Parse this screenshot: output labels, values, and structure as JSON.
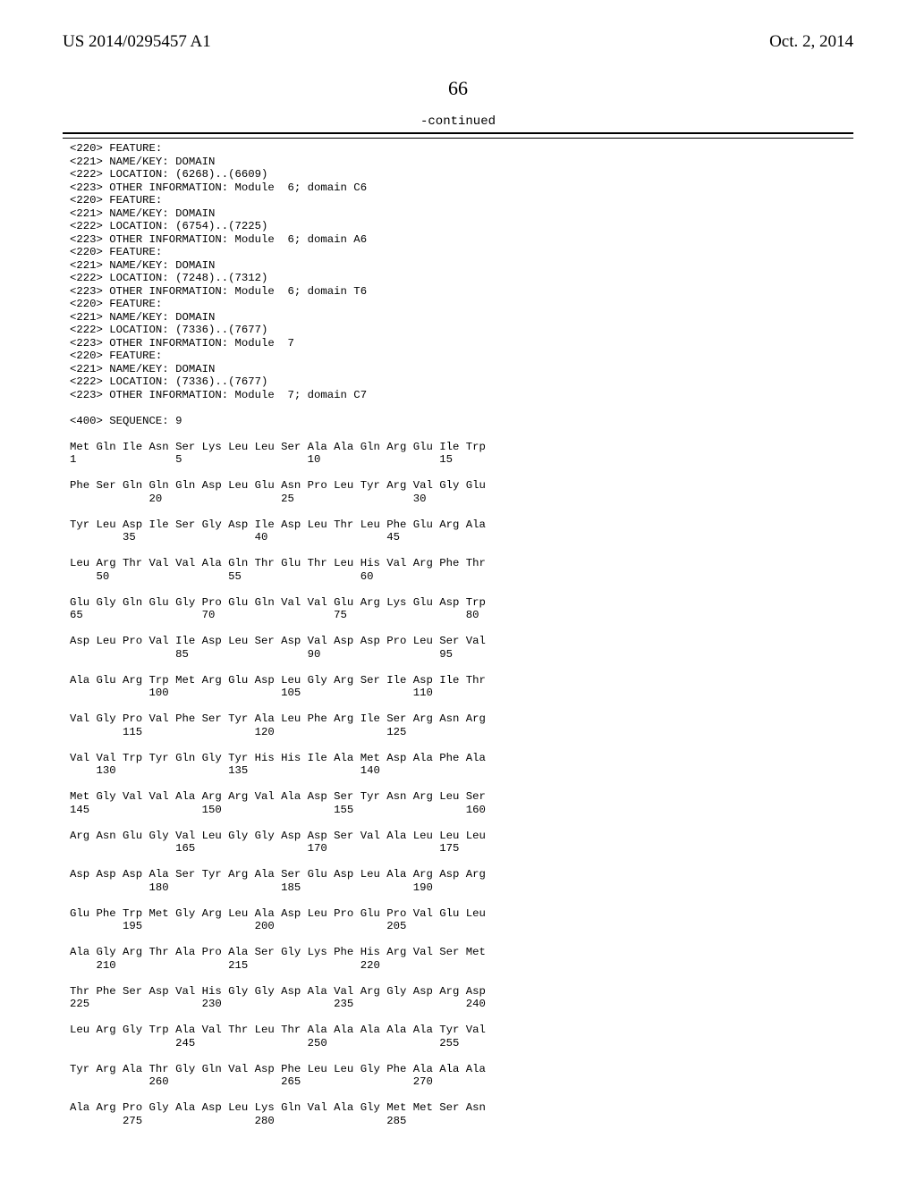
{
  "header": {
    "left": "US 2014/0295457 A1",
    "right": "Oct. 2, 2014"
  },
  "page_number": "66",
  "continued_label": "-continued",
  "features": [
    "<220> FEATURE:",
    "<221> NAME/KEY: DOMAIN",
    "<222> LOCATION: (6268)..(6609)",
    "<223> OTHER INFORMATION: Module  6; domain C6",
    "<220> FEATURE:",
    "<221> NAME/KEY: DOMAIN",
    "<222> LOCATION: (6754)..(7225)",
    "<223> OTHER INFORMATION: Module  6; domain A6",
    "<220> FEATURE:",
    "<221> NAME/KEY: DOMAIN",
    "<222> LOCATION: (7248)..(7312)",
    "<223> OTHER INFORMATION: Module  6; domain T6",
    "<220> FEATURE:",
    "<221> NAME/KEY: DOMAIN",
    "<222> LOCATION: (7336)..(7677)",
    "<223> OTHER INFORMATION: Module  7",
    "<220> FEATURE:",
    "<221> NAME/KEY: DOMAIN",
    "<222> LOCATION: (7336)..(7677)",
    "<223> OTHER INFORMATION: Module  7; domain C7",
    "",
    "<400> SEQUENCE: 9",
    ""
  ],
  "sequence_rows": [
    {
      "aa": "Met Gln Ile Asn Ser Lys Leu Leu Ser Ala Ala Gln Arg Glu Ile Trp",
      "nums": "1               5                   10                  15"
    },
    {
      "aa": "Phe Ser Gln Gln Gln Asp Leu Glu Asn Pro Leu Tyr Arg Val Gly Glu",
      "nums": "            20                  25                  30"
    },
    {
      "aa": "Tyr Leu Asp Ile Ser Gly Asp Ile Asp Leu Thr Leu Phe Glu Arg Ala",
      "nums": "        35                  40                  45"
    },
    {
      "aa": "Leu Arg Thr Val Val Ala Gln Thr Glu Thr Leu His Val Arg Phe Thr",
      "nums": "    50                  55                  60"
    },
    {
      "aa": "Glu Gly Gln Glu Gly Pro Glu Gln Val Val Glu Arg Lys Glu Asp Trp",
      "nums": "65                  70                  75                  80"
    },
    {
      "aa": "Asp Leu Pro Val Ile Asp Leu Ser Asp Val Asp Asp Pro Leu Ser Val",
      "nums": "                85                  90                  95"
    },
    {
      "aa": "Ala Glu Arg Trp Met Arg Glu Asp Leu Gly Arg Ser Ile Asp Ile Thr",
      "nums": "            100                 105                 110"
    },
    {
      "aa": "Val Gly Pro Val Phe Ser Tyr Ala Leu Phe Arg Ile Ser Arg Asn Arg",
      "nums": "        115                 120                 125"
    },
    {
      "aa": "Val Val Trp Tyr Gln Gly Tyr His His Ile Ala Met Asp Ala Phe Ala",
      "nums": "    130                 135                 140"
    },
    {
      "aa": "Met Gly Val Val Ala Arg Arg Val Ala Asp Ser Tyr Asn Arg Leu Ser",
      "nums": "145                 150                 155                 160"
    },
    {
      "aa": "Arg Asn Glu Gly Val Leu Gly Gly Asp Asp Ser Val Ala Leu Leu Leu",
      "nums": "                165                 170                 175"
    },
    {
      "aa": "Asp Asp Asp Ala Ser Tyr Arg Ala Ser Glu Asp Leu Ala Arg Asp Arg",
      "nums": "            180                 185                 190"
    },
    {
      "aa": "Glu Phe Trp Met Gly Arg Leu Ala Asp Leu Pro Glu Pro Val Glu Leu",
      "nums": "        195                 200                 205"
    },
    {
      "aa": "Ala Gly Arg Thr Ala Pro Ala Ser Gly Lys Phe His Arg Val Ser Met",
      "nums": "    210                 215                 220"
    },
    {
      "aa": "Thr Phe Ser Asp Val His Gly Gly Asp Ala Val Arg Gly Asp Arg Asp",
      "nums": "225                 230                 235                 240"
    },
    {
      "aa": "Leu Arg Gly Trp Ala Val Thr Leu Thr Ala Ala Ala Ala Ala Tyr Val",
      "nums": "                245                 250                 255"
    },
    {
      "aa": "Tyr Arg Ala Thr Gly Gln Val Asp Phe Leu Leu Gly Phe Ala Ala Ala",
      "nums": "            260                 265                 270"
    },
    {
      "aa": "Ala Arg Pro Gly Ala Asp Leu Lys Gln Val Ala Gly Met Met Ser Asn",
      "nums": "        275                 280                 285"
    }
  ]
}
